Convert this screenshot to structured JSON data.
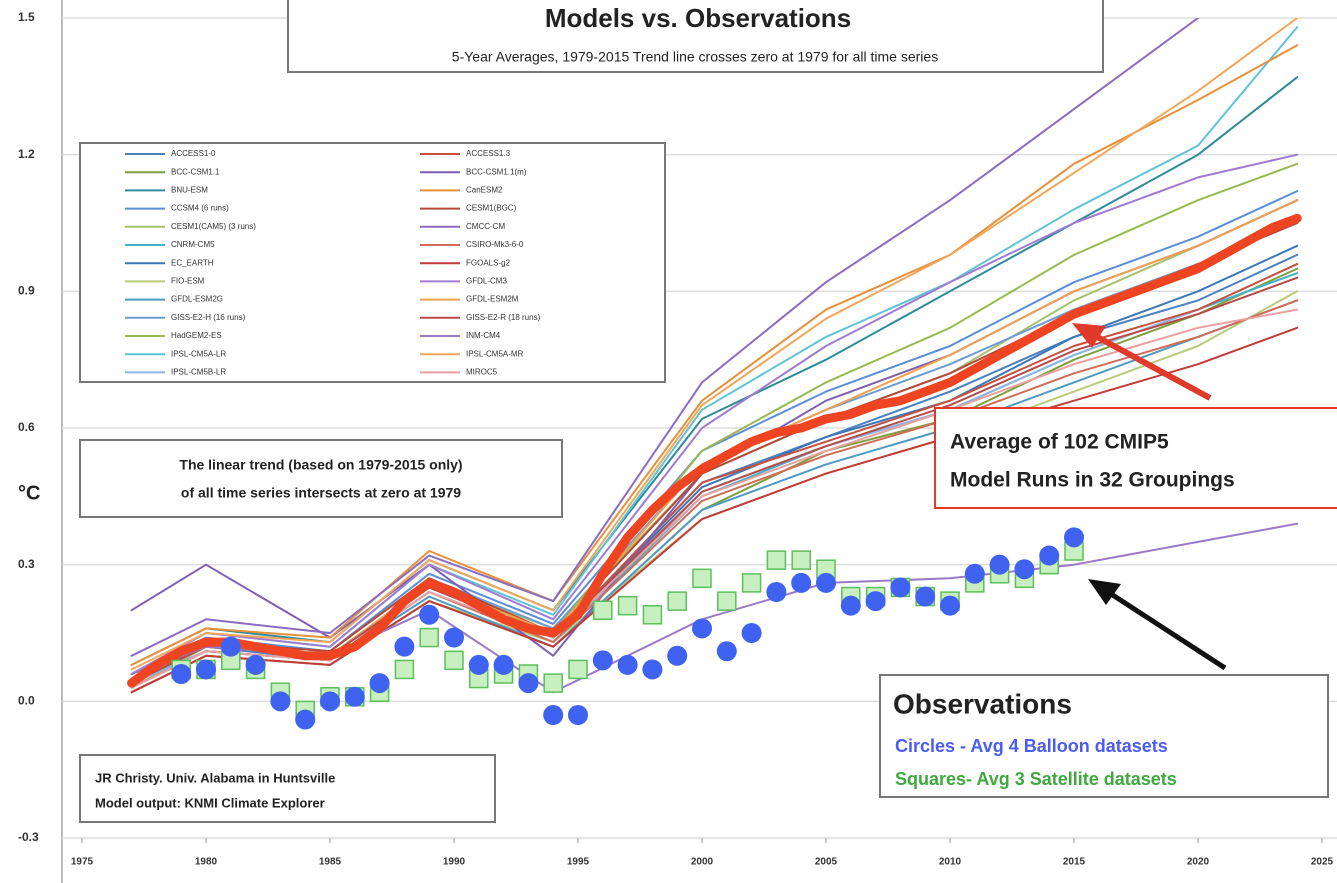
{
  "chart_data": {
    "type": "line",
    "title": "Models vs. Observations",
    "subtitle": "5-Year Averages, 1979-2015 Trend line crosses zero at 1979 for all time series",
    "ylabel": "°C",
    "xlim": [
      1975,
      2025
    ],
    "xticks": [
      1975,
      1980,
      1985,
      1990,
      1995,
      2000,
      2005,
      2010,
      2015,
      2020,
      2025
    ],
    "ylim": [
      -0.3,
      1.5
    ],
    "yticks": [
      -0.3,
      {
        "value": 0,
        "label": "0.0"
      },
      0.3,
      0.6,
      0.9,
      1.2,
      1.5
    ],
    "grid": true,
    "annotations": {
      "trend": [
        "The linear trend (based on 1979-2015 only)",
        "of all time series intersects at zero at 1979"
      ],
      "average": [
        "Average of 102 CMIP5",
        "Model Runs in 32 Groupings"
      ],
      "observations": "Observations",
      "circles": "Circles - Avg 4 Balloon datasets",
      "squares": "Squares- Avg 3 Satellite datasets",
      "credit": [
        "JR Christy. Univ. Alabama in Huntsville",
        "Model output: KNMI Climate Explorer"
      ]
    },
    "series": [
      {
        "name": "ACCESS1-0",
        "color": "#4a7fc1",
        "x": [
          1977,
          1980,
          1985,
          1989,
          1994,
          2000,
          2005,
          2010,
          2015,
          2020,
          2024
        ],
        "values": [
          0.05,
          0.12,
          0.09,
          0.25,
          0.14,
          0.48,
          0.58,
          0.68,
          0.8,
          0.88,
          0.98
        ]
      },
      {
        "name": "BCC-CSM1.1",
        "color": "#7f9f3f",
        "x": [
          1977,
          1980,
          1985,
          1989,
          1994,
          2000,
          2005,
          2010,
          2015,
          2020,
          2024
        ],
        "values": [
          0.02,
          0.1,
          0.08,
          0.22,
          0.12,
          0.42,
          0.55,
          0.62,
          0.75,
          0.85,
          0.95
        ]
      },
      {
        "name": "BNU-ESM",
        "color": "#2e8b9a",
        "x": [
          1977,
          1980,
          1985,
          1989,
          1994,
          2000,
          2005,
          2010,
          2015,
          2020,
          2024
        ],
        "values": [
          0.08,
          0.16,
          0.13,
          0.31,
          0.2,
          0.62,
          0.75,
          0.9,
          1.05,
          1.2,
          1.37
        ]
      },
      {
        "name": "CCSM4 (6 runs)",
        "color": "#5b8ed6",
        "x": [
          1977,
          1980,
          1985,
          1989,
          1994,
          2000,
          2005,
          2010,
          2015,
          2020,
          2024
        ],
        "values": [
          0.06,
          0.14,
          0.11,
          0.28,
          0.17,
          0.55,
          0.68,
          0.78,
          0.92,
          1.02,
          1.12
        ]
      },
      {
        "name": "CESM1(CAM5) (3 runs)",
        "color": "#a8c06b",
        "x": [
          1977,
          1980,
          1985,
          1989,
          1994,
          2000,
          2005,
          2010,
          2015,
          2020,
          2024
        ],
        "values": [
          0.03,
          0.12,
          0.1,
          0.26,
          0.16,
          0.5,
          0.62,
          0.72,
          0.88,
          1.0,
          1.1
        ]
      },
      {
        "name": "CNRM-CM5",
        "color": "#3fb3c9",
        "x": [
          1977,
          1980,
          1985,
          1989,
          1994,
          2000,
          2005,
          2010,
          2015,
          2020,
          2024
        ],
        "values": [
          0.04,
          0.11,
          0.09,
          0.24,
          0.13,
          0.45,
          0.56,
          0.64,
          0.76,
          0.86,
          0.94
        ]
      },
      {
        "name": "EC_EARTH",
        "color": "#3b78b8",
        "x": [
          1977,
          1980,
          1985,
          1989,
          1994,
          2000,
          2005,
          2010,
          2015,
          2020,
          2024
        ],
        "values": [
          0.05,
          0.13,
          0.1,
          0.25,
          0.14,
          0.47,
          0.58,
          0.66,
          0.8,
          0.9,
          1.0
        ]
      },
      {
        "name": "FIO-ESM",
        "color": "#b9cc7a",
        "x": [
          1977,
          1980,
          1985,
          1989,
          1994,
          2000,
          2005,
          2010,
          2015,
          2020,
          2024
        ],
        "values": [
          0.02,
          0.1,
          0.08,
          0.22,
          0.13,
          0.4,
          0.5,
          0.58,
          0.68,
          0.78,
          0.9
        ]
      },
      {
        "name": "GFDL-ESM2G",
        "color": "#4f9ac2",
        "x": [
          1977,
          1980,
          1985,
          1989,
          1994,
          2000,
          2005,
          2010,
          2015,
          2020,
          2024
        ],
        "values": [
          0.03,
          0.11,
          0.09,
          0.23,
          0.12,
          0.42,
          0.52,
          0.6,
          0.7,
          0.8,
          0.88
        ]
      },
      {
        "name": "GISS-E2-H (16 runs)",
        "color": "#6d9bd3",
        "x": [
          1977,
          1980,
          1985,
          1989,
          1994,
          2000,
          2005,
          2010,
          2015,
          2020,
          2024
        ],
        "values": [
          0.06,
          0.13,
          0.11,
          0.27,
          0.16,
          0.52,
          0.64,
          0.74,
          0.86,
          0.96,
          1.05
        ]
      },
      {
        "name": "HadGEM2-ES",
        "color": "#9ab84f",
        "x": [
          1977,
          1980,
          1985,
          1989,
          1994,
          2000,
          2005,
          2010,
          2015,
          2020,
          2024
        ],
        "values": [
          0.04,
          0.12,
          0.1,
          0.26,
          0.15,
          0.55,
          0.7,
          0.82,
          0.98,
          1.1,
          1.18
        ]
      },
      {
        "name": "IPSL-CM5A-LR",
        "color": "#5fc3d8",
        "x": [
          1977,
          1980,
          1985,
          1989,
          1994,
          2000,
          2005,
          2010,
          2015,
          2020,
          2024
        ],
        "values": [
          0.06,
          0.15,
          0.12,
          0.3,
          0.19,
          0.64,
          0.8,
          0.92,
          1.08,
          1.22,
          1.48
        ]
      },
      {
        "name": "IPSL-CM5B-LR",
        "color": "#8fb4e0",
        "x": [
          1977,
          1980,
          1985,
          1989,
          1994,
          2000,
          2005,
          2010,
          2015,
          2020,
          2024
        ],
        "values": [
          0.04,
          0.11,
          0.09,
          0.24,
          0.13,
          0.46,
          0.56,
          0.64,
          0.76,
          0.86,
          0.96
        ]
      },
      {
        "name": "ACCESS1.3",
        "color": "#c9503f",
        "x": [
          1977,
          1980,
          1985,
          1989,
          1994,
          2000,
          2005,
          2010,
          2015,
          2020,
          2024
        ],
        "values": [
          0.05,
          0.12,
          0.1,
          0.25,
          0.14,
          0.48,
          0.57,
          0.66,
          0.78,
          0.86,
          0.96
        ]
      },
      {
        "name": "BCC-CSM1.1(m)",
        "color": "#7d5fb2",
        "x": [
          1977,
          1980,
          1985,
          1989,
          1994,
          2000,
          2005,
          2010,
          2015,
          2020,
          2024
        ],
        "values": [
          0.2,
          0.3,
          0.14,
          0.3,
          0.1,
          0.5,
          0.66,
          0.76,
          0.9,
          1.0,
          1.1
        ]
      },
      {
        "name": "CanESM2",
        "color": "#e8903a",
        "x": [
          1977,
          1980,
          1985,
          1989,
          1994,
          2000,
          2005,
          2010,
          2015,
          2020,
          2024
        ],
        "values": [
          0.08,
          0.16,
          0.14,
          0.33,
          0.22,
          0.66,
          0.86,
          0.98,
          1.18,
          1.32,
          1.44
        ]
      },
      {
        "name": "CESM1(BGC)",
        "color": "#b5483a",
        "x": [
          1977,
          1980,
          1985,
          1989,
          1994,
          2000,
          2005,
          2010,
          2015,
          2020,
          2024
        ],
        "values": [
          0.05,
          0.13,
          0.11,
          0.27,
          0.15,
          0.5,
          0.62,
          0.72,
          0.85,
          0.96,
          1.05
        ]
      },
      {
        "name": "CMCC-CM",
        "color": "#8a6cc2",
        "x": [
          1977,
          1980,
          1985,
          1989,
          1994,
          2000,
          2005,
          2010,
          2015,
          2020,
          2024
        ],
        "values": [
          0.1,
          0.18,
          0.15,
          0.32,
          0.22,
          0.7,
          0.92,
          1.1,
          1.3,
          1.5,
          1.7
        ]
      },
      {
        "name": "CSIRO-Mk3-6-0",
        "color": "#d06c5a",
        "x": [
          1977,
          1980,
          1985,
          1989,
          1994,
          2000,
          2005,
          2010,
          2015,
          2020,
          2024
        ],
        "values": [
          0.03,
          0.11,
          0.09,
          0.24,
          0.13,
          0.44,
          0.54,
          0.62,
          0.72,
          0.8,
          0.88
        ]
      },
      {
        "name": "FGOALS-g2",
        "color": "#c23a3a",
        "x": [
          1977,
          1980,
          1985,
          1989,
          1994,
          2000,
          2005,
          2010,
          2015,
          2020,
          2024
        ],
        "values": [
          0.02,
          0.1,
          0.08,
          0.22,
          0.12,
          0.4,
          0.5,
          0.58,
          0.66,
          0.74,
          0.82
        ]
      },
      {
        "name": "GFDL-CM3",
        "color": "#a07cd0",
        "x": [
          1977,
          1980,
          1985,
          1989,
          1994,
          2000,
          2005,
          2010,
          2015,
          2020,
          2024
        ],
        "values": [
          0.06,
          0.15,
          0.12,
          0.3,
          0.18,
          0.6,
          0.78,
          0.92,
          1.05,
          1.15,
          1.2
        ]
      },
      {
        "name": "GFDL-ESM2M",
        "color": "#f0a050",
        "x": [
          1977,
          1980,
          1985,
          1989,
          1994,
          2000,
          2005,
          2010,
          2015,
          2020,
          2024
        ],
        "values": [
          0.04,
          0.12,
          0.1,
          0.26,
          0.15,
          0.52,
          0.64,
          0.76,
          0.9,
          1.0,
          1.1
        ]
      },
      {
        "name": "GISS-E2-R (18 runs)",
        "color": "#b84a4a",
        "x": [
          1977,
          1980,
          1985,
          1989,
          1994,
          2000,
          2005,
          2010,
          2015,
          2020,
          2024
        ],
        "values": [
          0.04,
          0.12,
          0.1,
          0.25,
          0.14,
          0.46,
          0.56,
          0.65,
          0.77,
          0.85,
          0.93
        ]
      },
      {
        "name": "INM-CM4",
        "color": "#9a7ac8",
        "x": [
          1977,
          1980,
          1985,
          1989,
          1994,
          2000,
          2005,
          2010,
          2015,
          2020,
          2024
        ],
        "values": [
          0.06,
          0.12,
          0.1,
          0.2,
          0.02,
          0.18,
          0.26,
          0.27,
          0.3,
          0.35,
          0.39
        ]
      },
      {
        "name": "IPSL-CM5A-MR",
        "color": "#f2a65a",
        "x": [
          1977,
          1980,
          1985,
          1989,
          1994,
          2000,
          2005,
          2010,
          2015,
          2020,
          2024
        ],
        "values": [
          0.07,
          0.15,
          0.13,
          0.31,
          0.2,
          0.65,
          0.84,
          0.98,
          1.16,
          1.34,
          1.5
        ]
      },
      {
        "name": "MIROC5",
        "color": "#e8a0a0",
        "x": [
          1977,
          1980,
          1985,
          1989,
          1994,
          2000,
          2005,
          2010,
          2015,
          2020,
          2024
        ],
        "values": [
          0.03,
          0.11,
          0.09,
          0.24,
          0.14,
          0.45,
          0.55,
          0.64,
          0.74,
          0.82,
          0.86
        ]
      },
      {
        "color": "#ee4422",
        "line_width": 9,
        "x": [
          1977,
          1978,
          1979,
          1980,
          1981,
          1982,
          1983,
          1984,
          1985,
          1986,
          1987,
          1988,
          1989,
          1990,
          1991,
          1992,
          1993,
          1994,
          1995,
          1996,
          1997,
          1998,
          1999,
          2000,
          2001,
          2002,
          2003,
          2004,
          2005,
          2006,
          2007,
          2008,
          2009,
          2010,
          2011,
          2012,
          2013,
          2014,
          2015,
          2016,
          2017,
          2018,
          2019,
          2020,
          2021,
          2022,
          2023,
          2024
        ],
        "values": [
          0.04,
          0.08,
          0.11,
          0.13,
          0.13,
          0.12,
          0.11,
          0.1,
          0.1,
          0.12,
          0.16,
          0.22,
          0.26,
          0.24,
          0.21,
          0.18,
          0.16,
          0.15,
          0.19,
          0.28,
          0.36,
          0.42,
          0.47,
          0.51,
          0.54,
          0.57,
          0.59,
          0.6,
          0.62,
          0.63,
          0.65,
          0.66,
          0.68,
          0.7,
          0.73,
          0.76,
          0.79,
          0.82,
          0.85,
          0.87,
          0.89,
          0.91,
          0.93,
          0.95,
          0.98,
          1.01,
          1.04,
          1.06
        ]
      },
      {
        "color": "#5cbf5c",
        "marker": "square",
        "x": [
          1979,
          1980,
          1981,
          1982,
          1983,
          1984,
          1985,
          1986,
          1987,
          1988,
          1989,
          1990,
          1991,
          1992,
          1993,
          1994,
          1995,
          1996,
          1997,
          1998,
          1999,
          2000,
          2001,
          2002,
          2003,
          2004,
          2005,
          2006,
          2007,
          2008,
          2009,
          2010,
          2011,
          2012,
          2013,
          2014,
          2015
        ],
        "values": [
          0.07,
          0.07,
          0.09,
          0.07,
          0.02,
          -0.02,
          0.01,
          0.01,
          0.02,
          0.07,
          0.14,
          0.09,
          0.05,
          0.06,
          0.06,
          0.04,
          0.07,
          0.2,
          0.21,
          0.19,
          0.22,
          0.27,
          0.22,
          0.26,
          0.31,
          0.31,
          0.29,
          0.23,
          0.23,
          0.25,
          0.23,
          0.22,
          0.26,
          0.28,
          0.27,
          0.3,
          0.33
        ]
      },
      {
        "color": "#3f62f0",
        "marker": "circle",
        "x": [
          1979,
          1980,
          1981,
          1982,
          1983,
          1984,
          1985,
          1986,
          1987,
          1988,
          1989,
          1990,
          1991,
          1992,
          1993,
          1994,
          1995,
          1996,
          1997,
          1998,
          1999,
          2000,
          2001,
          2002,
          2003,
          2004,
          2005,
          2006,
          2007,
          2008,
          2009,
          2010,
          2011,
          2012,
          2013,
          2014,
          2015
        ],
        "values": [
          0.06,
          0.07,
          0.12,
          0.08,
          0.0,
          -0.04,
          0.0,
          0.01,
          0.04,
          0.12,
          0.19,
          0.14,
          0.08,
          0.08,
          0.04,
          -0.03,
          -0.03,
          0.09,
          0.08,
          0.07,
          0.1,
          0.16,
          0.11,
          0.15,
          0.24,
          0.26,
          0.26,
          0.21,
          0.22,
          0.25,
          0.23,
          0.21,
          0.28,
          0.3,
          0.29,
          0.32,
          0.36
        ]
      }
    ]
  }
}
